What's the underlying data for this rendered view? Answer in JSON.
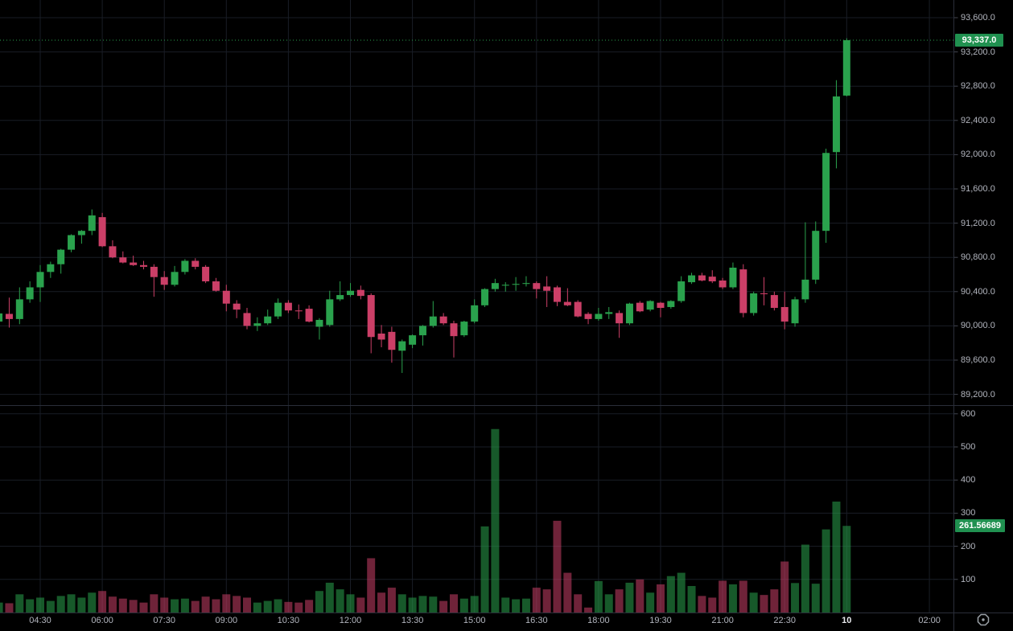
{
  "chart": {
    "last_price": "93,337.0",
    "last_volume": "261.56689",
    "colors": {
      "background": "#000000",
      "up": "#2aa24d",
      "down": "#cb3f67",
      "volume_up": "rgba(42,162,77,0.55)",
      "volume_down": "rgba(203,63,103,0.55)",
      "badge_price_bg": "#209150",
      "badge_volume_bg": "#209150",
      "grid": "#191d26",
      "pane_border": "#2a2e39",
      "axis_text": "#b2b5be",
      "axis_text_bold": "#e8e9ed",
      "tick_dash": "#434651",
      "last_price_line": "#2aa24d",
      "icon": "#9aa0a6"
    },
    "icons": {
      "bottom_right": "octagon-clock-icon"
    }
  },
  "price_axis": {
    "ticks": [
      {
        "label": "93,600.0",
        "value": 93600
      },
      {
        "label": "93,200.0",
        "value": 93200
      },
      {
        "label": "92,800.0",
        "value": 92800
      },
      {
        "label": "92,400.0",
        "value": 92400
      },
      {
        "label": "92,000.0",
        "value": 92000
      },
      {
        "label": "91,600.0",
        "value": 91600
      },
      {
        "label": "91,200.0",
        "value": 91200
      },
      {
        "label": "90,800.0",
        "value": 90800
      },
      {
        "label": "90,400.0",
        "value": 90400
      },
      {
        "label": "90,000.0",
        "value": 90000
      },
      {
        "label": "89,600.0",
        "value": 89600
      },
      {
        "label": "89,200.0",
        "value": 89200
      }
    ]
  },
  "volume_axis": {
    "ticks": [
      {
        "label": "600",
        "value": 600
      },
      {
        "label": "500",
        "value": 500
      },
      {
        "label": "400",
        "value": 400
      },
      {
        "label": "300",
        "value": 300
      },
      {
        "label": "200",
        "value": 200
      },
      {
        "label": "100",
        "value": 100
      }
    ]
  },
  "time_axis": {
    "ticks": [
      {
        "label": "04:30",
        "index": 4
      },
      {
        "label": "06:00",
        "index": 10
      },
      {
        "label": "07:30",
        "index": 16
      },
      {
        "label": "09:00",
        "index": 22
      },
      {
        "label": "10:30",
        "index": 28
      },
      {
        "label": "12:00",
        "index": 34
      },
      {
        "label": "13:30",
        "index": 40
      },
      {
        "label": "15:00",
        "index": 46
      },
      {
        "label": "16:30",
        "index": 52
      },
      {
        "label": "18:00",
        "index": 58
      },
      {
        "label": "19:30",
        "index": 64
      },
      {
        "label": "21:00",
        "index": 70
      },
      {
        "label": "22:30",
        "index": 76
      },
      {
        "label": "10",
        "index": 82,
        "bold": true
      },
      {
        "label": "02:00",
        "index": 90
      }
    ]
  },
  "chart_data": {
    "type": "candlestick",
    "interval_minutes": 15,
    "price_ylim": [
      89074,
      93807
    ],
    "volume_ylim": [
      0,
      620
    ],
    "grid": true,
    "last_price": 93337.0,
    "last_volume": 261.56689,
    "columns": [
      "time",
      "open",
      "high",
      "low",
      "close",
      "volume"
    ],
    "candles": [
      [
        "03:30",
        90050,
        90150,
        90030,
        90145,
        30
      ],
      [
        "03:45",
        90140,
        90330,
        89980,
        90080,
        28
      ],
      [
        "04:00",
        90080,
        90450,
        90020,
        90310,
        55
      ],
      [
        "04:15",
        90310,
        90520,
        90270,
        90450,
        40
      ],
      [
        "04:30",
        90450,
        90710,
        90280,
        90630,
        45
      ],
      [
        "04:45",
        90630,
        90750,
        90560,
        90720,
        35
      ],
      [
        "05:00",
        90720,
        90900,
        90610,
        90890,
        50
      ],
      [
        "05:15",
        90890,
        91070,
        90860,
        91060,
        55
      ],
      [
        "05:30",
        91060,
        91120,
        90960,
        91110,
        45
      ],
      [
        "05:45",
        91110,
        91360,
        91060,
        91290,
        60
      ],
      [
        "06:00",
        91270,
        91320,
        90920,
        90930,
        65
      ],
      [
        "06:15",
        90930,
        91000,
        90790,
        90800,
        48
      ],
      [
        "06:30",
        90800,
        90870,
        90730,
        90740,
        42
      ],
      [
        "06:45",
        90740,
        90820,
        90700,
        90710,
        38
      ],
      [
        "07:00",
        90710,
        90760,
        90660,
        90690,
        30
      ],
      [
        "07:15",
        90690,
        90720,
        90340,
        90570,
        55
      ],
      [
        "07:30",
        90570,
        90640,
        90420,
        90480,
        45
      ],
      [
        "07:45",
        90480,
        90700,
        90460,
        90630,
        40
      ],
      [
        "08:00",
        90630,
        90780,
        90600,
        90760,
        42
      ],
      [
        "08:15",
        90760,
        90790,
        90660,
        90690,
        35
      ],
      [
        "08:30",
        90690,
        90710,
        90500,
        90520,
        48
      ],
      [
        "08:45",
        90520,
        90560,
        90400,
        90410,
        40
      ],
      [
        "09:00",
        90410,
        90480,
        90170,
        90260,
        55
      ],
      [
        "09:15",
        90260,
        90300,
        90090,
        90190,
        50
      ],
      [
        "09:30",
        90150,
        90210,
        89960,
        90000,
        45
      ],
      [
        "09:45",
        90000,
        90100,
        89940,
        90030,
        30
      ],
      [
        "10:00",
        90030,
        90190,
        90010,
        90110,
        35
      ],
      [
        "10:15",
        90110,
        90320,
        90080,
        90270,
        40
      ],
      [
        "10:30",
        90270,
        90300,
        90150,
        90180,
        32
      ],
      [
        "10:45",
        90180,
        90250,
        90080,
        90170,
        30
      ],
      [
        "11:00",
        90200,
        90240,
        90040,
        90050,
        38
      ],
      [
        "11:15",
        89990,
        90090,
        89840,
        90070,
        65
      ],
      [
        "11:30",
        90010,
        90410,
        89990,
        90310,
        90
      ],
      [
        "11:45",
        90310,
        90520,
        90290,
        90360,
        70
      ],
      [
        "12:00",
        90360,
        90500,
        90340,
        90410,
        55
      ],
      [
        "12:15",
        90420,
        90470,
        90310,
        90350,
        45
      ],
      [
        "12:30",
        90360,
        90380,
        89680,
        89870,
        164
      ],
      [
        "12:45",
        89910,
        90010,
        89750,
        89840,
        60
      ],
      [
        "13:00",
        89930,
        89990,
        89570,
        89720,
        75
      ],
      [
        "13:15",
        89710,
        89840,
        89450,
        89820,
        55
      ],
      [
        "13:30",
        89780,
        89900,
        89740,
        89890,
        45
      ],
      [
        "13:45",
        89890,
        90010,
        89770,
        90000,
        50
      ],
      [
        "14:00",
        90000,
        90290,
        89980,
        90110,
        48
      ],
      [
        "14:15",
        90110,
        90150,
        90010,
        90030,
        35
      ],
      [
        "14:30",
        90030,
        90060,
        89630,
        89880,
        55
      ],
      [
        "14:45",
        89890,
        90060,
        89870,
        90050,
        42
      ],
      [
        "15:00",
        90050,
        90310,
        90030,
        90240,
        50
      ],
      [
        "15:15",
        90240,
        90440,
        90220,
        90430,
        260
      ],
      [
        "15:30",
        90430,
        90550,
        90400,
        90500,
        554
      ],
      [
        "15:45",
        90470,
        90510,
        90400,
        90480,
        45
      ],
      [
        "16:00",
        90480,
        90570,
        90410,
        90490,
        40
      ],
      [
        "16:15",
        90490,
        90580,
        90460,
        90500,
        42
      ],
      [
        "16:30",
        90500,
        90520,
        90320,
        90430,
        75
      ],
      [
        "16:45",
        90460,
        90580,
        90220,
        90410,
        70
      ],
      [
        "17:00",
        90450,
        90470,
        90230,
        90280,
        277
      ],
      [
        "17:15",
        90280,
        90440,
        90230,
        90240,
        120
      ],
      [
        "17:30",
        90280,
        90300,
        90100,
        90110,
        55
      ],
      [
        "17:45",
        90140,
        90160,
        90020,
        90080,
        15
      ],
      [
        "18:00",
        90080,
        90210,
        90060,
        90140,
        95
      ],
      [
        "18:15",
        90140,
        90220,
        90080,
        90160,
        55
      ],
      [
        "18:30",
        90150,
        90180,
        89860,
        90030,
        70
      ],
      [
        "18:45",
        90030,
        90270,
        90010,
        90260,
        90
      ],
      [
        "19:00",
        90270,
        90290,
        90160,
        90170,
        100
      ],
      [
        "19:15",
        90190,
        90300,
        90170,
        90290,
        60
      ],
      [
        "19:30",
        90270,
        90280,
        90100,
        90210,
        85
      ],
      [
        "19:45",
        90220,
        90300,
        90200,
        90290,
        110
      ],
      [
        "20:00",
        90290,
        90580,
        90270,
        90520,
        120
      ],
      [
        "20:15",
        90510,
        90620,
        90490,
        90590,
        80
      ],
      [
        "20:30",
        90590,
        90620,
        90520,
        90530,
        50
      ],
      [
        "20:45",
        90575,
        90650,
        90500,
        90520,
        45
      ],
      [
        "21:00",
        90530,
        90560,
        90430,
        90450,
        96
      ],
      [
        "21:15",
        90450,
        90740,
        90430,
        90680,
        85
      ],
      [
        "21:30",
        90660,
        90720,
        90100,
        90150,
        96
      ],
      [
        "21:45",
        90150,
        90400,
        90120,
        90380,
        60
      ],
      [
        "22:00",
        90380,
        90570,
        90240,
        90370,
        53
      ],
      [
        "22:15",
        90360,
        90400,
        90180,
        90210,
        70
      ],
      [
        "22:30",
        90220,
        90400,
        89960,
        90050,
        154
      ],
      [
        "22:45",
        90030,
        90340,
        89990,
        90310,
        89
      ],
      [
        "23:00",
        90310,
        91210,
        90270,
        90540,
        205
      ],
      [
        "23:15",
        90540,
        91220,
        90490,
        91110,
        87
      ],
      [
        "23:30",
        91110,
        92070,
        90970,
        92020,
        251
      ],
      [
        "23:45",
        92030,
        92870,
        91840,
        92680,
        335
      ],
      [
        "00:00",
        92690,
        93360,
        92680,
        93337,
        261.56689
      ]
    ]
  }
}
